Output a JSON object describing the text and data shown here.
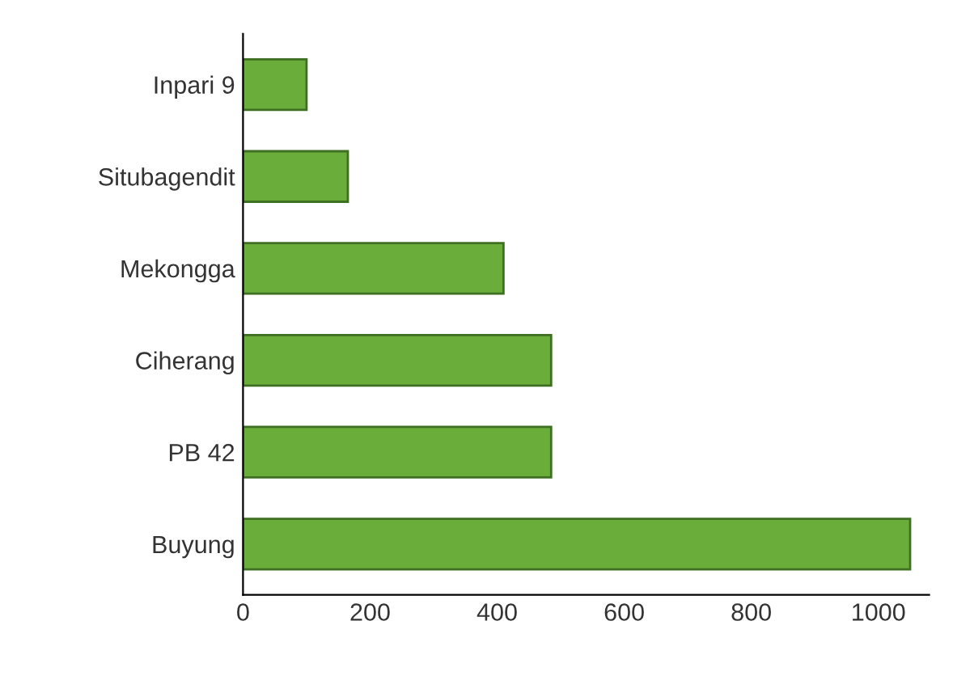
{
  "chart_data": {
    "type": "bar",
    "orientation": "horizontal",
    "categories": [
      "Inpari 9",
      "Situbagendit",
      "Mekongga",
      "Ciherang",
      "PB 42",
      "Buyung"
    ],
    "values": [
      100,
      165,
      410,
      485,
      485,
      1050
    ],
    "color": "#6aad3a",
    "xlim": [
      0,
      1080
    ],
    "xticks": [
      0,
      200,
      400,
      600,
      800,
      1000
    ],
    "grid": false
  }
}
